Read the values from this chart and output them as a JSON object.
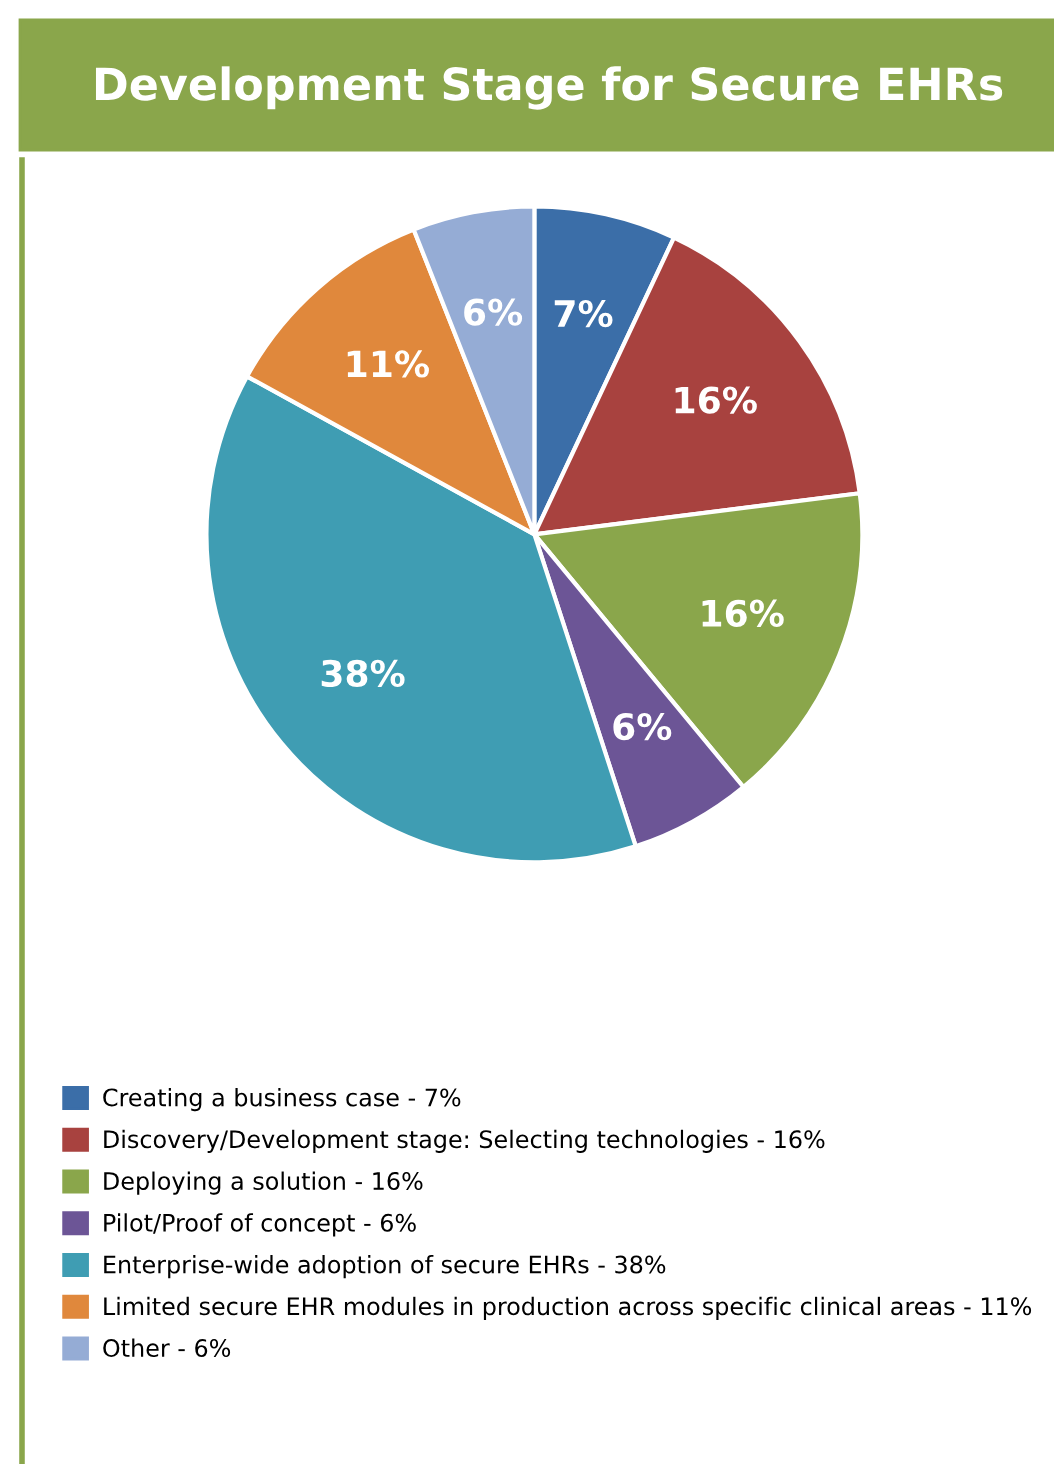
{
  "chart_data": {
    "type": "pie",
    "title": "Development Stage for Secure EHRs",
    "categories": [
      "Creating a business case - 7%",
      "Discovery/Development stage: Selecting technologies - 16%",
      "Deploying a solution - 16%",
      "Pilot/Proof of concept - 6%",
      "Enterprise-wide adoption of secure EHRs - 38%",
      "Limited secure EHR modules in production across specific clinical areas - 11%",
      "Other - 6%"
    ],
    "values": [
      7,
      16,
      16,
      6,
      38,
      11,
      6
    ],
    "value_labels": [
      "7%",
      "16%",
      "16%",
      "6%",
      "38%",
      "11%",
      "6%"
    ],
    "colors": [
      "#3b6ea8",
      "#a8423f",
      "#8aa64b",
      "#6c5596",
      "#3f9db3",
      "#e0883c",
      "#95acd5"
    ],
    "legend": "bottom"
  }
}
